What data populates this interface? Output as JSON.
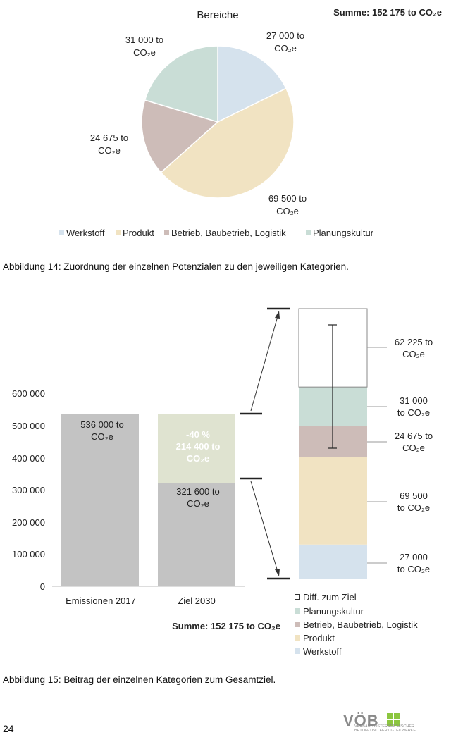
{
  "pie": {
    "title": "Bereiche",
    "summe": "Summe: 152 175 to CO₂e",
    "legend": [
      "Werkstoff",
      "Produkt",
      "Betrieb, Baubetrieb, Logistik",
      "Planungskultur"
    ],
    "labels": [
      [
        "27 000 to",
        "CO₂e"
      ],
      [
        "69 500 to",
        "CO₂e"
      ],
      [
        "24 675 to",
        "CO₂e"
      ],
      [
        "31 000 to",
        "CO₂e"
      ]
    ]
  },
  "caption14": "Abbildung 14: Zuordnung der einzelnen Potenzialen zu den jeweiligen Kategorien.",
  "bar": {
    "yticks": [
      "600 000",
      "500 000",
      "400 000",
      "300 000",
      "200 000",
      "100 000",
      "0"
    ],
    "categories": [
      "Emissionen 2017",
      "Ziel 2030"
    ],
    "label_2017": [
      "536 000 to",
      "CO₂e"
    ],
    "label_reduction": [
      "-40 %",
      "214 400 to",
      "CO₂e"
    ],
    "label_2030": [
      "321 600 to",
      "CO₂e"
    ],
    "summe": "Summe: 152 175 to CO₂e"
  },
  "stack": {
    "labels": [
      [
        "62 225 to",
        "CO₂e"
      ],
      [
        "31 000",
        "to CO₂e"
      ],
      [
        "24 675 to",
        "CO₂e"
      ],
      [
        "69 500",
        "to CO₂e"
      ],
      [
        "27 000",
        "to CO₂e"
      ]
    ],
    "legend": [
      "Diff. zum Ziel",
      "Planungskultur",
      "Betrieb, Baubetrieb, Logistik",
      "Produkt",
      "Werkstoff"
    ]
  },
  "caption15": "Abbildung 15: Beitrag der einzelnen Kategorien zum Gesamtziel.",
  "page_number": "24",
  "logo": {
    "word": "VÖB",
    "sub": "VERBAND ÖSTERREICHISCHER BETON- UND FERTIGTEILWERKE"
  },
  "colors": {
    "werkstoff": "#d5e2ed",
    "produkt": "#f1e3c2",
    "betrieb": "#cdbcb8",
    "planungskultur": "#c9ddd6",
    "bar_grey": "#c3c3c3",
    "reduction": "#dfe3d0",
    "logo_green": "#8cc63f"
  },
  "chart_data": [
    {
      "type": "pie",
      "title": "Bereiche",
      "categories": [
        "Werkstoff",
        "Produkt",
        "Betrieb, Baubetrieb, Logistik",
        "Planungskultur"
      ],
      "values": [
        27000,
        69500,
        24675,
        31000
      ],
      "unit": "to CO₂e",
      "total": 152175,
      "legend": "bottom"
    },
    {
      "type": "bar",
      "categories": [
        "Emissionen 2017",
        "Ziel 2030"
      ],
      "series": [
        {
          "name": "",
          "values": [
            536000,
            321600
          ]
        },
        {
          "name": "",
          "values": [
            0,
            214400
          ]
        }
      ],
      "ylim": [
        0,
        600000
      ],
      "reduction_percent": -40
    },
    {
      "type": "bar",
      "categories": [
        "Diff. zum Ziel",
        "Planungskultur",
        "Betrieb, Baubetrieb, Logistik",
        "Produkt",
        "Werkstoff"
      ],
      "values": [
        62225,
        31000,
        24675,
        69500,
        27000
      ],
      "stacked": true,
      "legend": "bottom"
    }
  ]
}
